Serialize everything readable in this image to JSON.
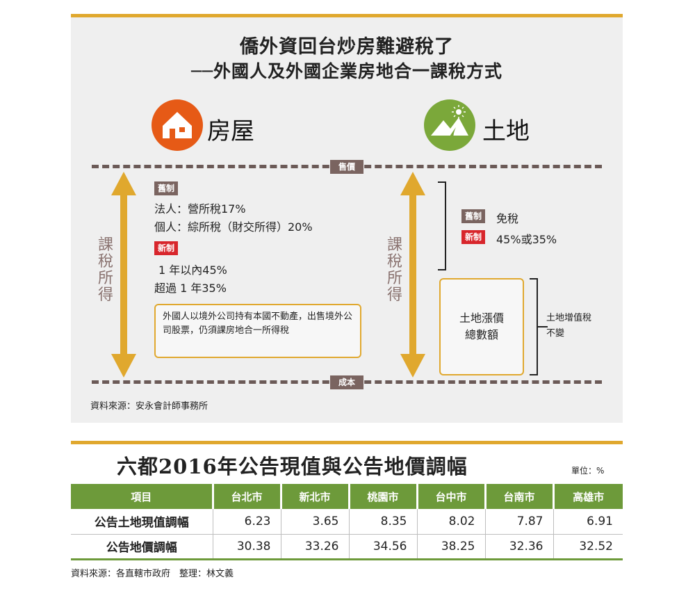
{
  "header": {
    "title": "僑外資回台炒房難避稅了",
    "subtitle": "──外國人及外國企業房地合一課稅方式"
  },
  "categories": {
    "house": "房屋",
    "land": "土地"
  },
  "markers": {
    "sale": "售價",
    "cost": "成本",
    "taxed_income": "課稅所得"
  },
  "house_section": {
    "old_badge": "舊制",
    "old_lines": [
      "法人：營所稅17%",
      "個人：綜所稅（財交所得）20%"
    ],
    "new_badge": "新制",
    "new_lines": [
      "1 年以內45%",
      "超過 1 年35%"
    ],
    "note": "外國人以境外公司持有本國不動產，出售境外公司股票，仍須課房地合一所得稅"
  },
  "land_section": {
    "old_badge": "舊制",
    "old_text": "免稅",
    "new_badge": "新制",
    "new_text": "45%或35%",
    "box_text": "土地漲價總數額",
    "side_note": "土地增值稅不變"
  },
  "diagram_source": "資料來源：安永會計師事務所",
  "table": {
    "title": "六都2016年公告現值與公告地價調幅",
    "unit": "單位：%",
    "headers": [
      "項目",
      "台北市",
      "新北市",
      "桃園市",
      "台中市",
      "台南市",
      "高雄市"
    ],
    "rows": [
      {
        "label": "公告土地現值調幅",
        "values": [
          "6.23",
          "3.65",
          "8.35",
          "8.02",
          "7.87",
          "6.91"
        ]
      },
      {
        "label": "公告地價調幅",
        "values": [
          "30.38",
          "33.26",
          "34.56",
          "38.25",
          "32.36",
          "32.52"
        ]
      }
    ],
    "footer": "資料來源：各直轄市政府　整理：林文義"
  },
  "colors": {
    "accent_gold": "#e0a82e",
    "house_orange": "#e65a16",
    "land_green": "#7ba83a",
    "table_green": "#6d9a3a",
    "badge_old": "#7a6460",
    "badge_new": "#d8262c"
  }
}
